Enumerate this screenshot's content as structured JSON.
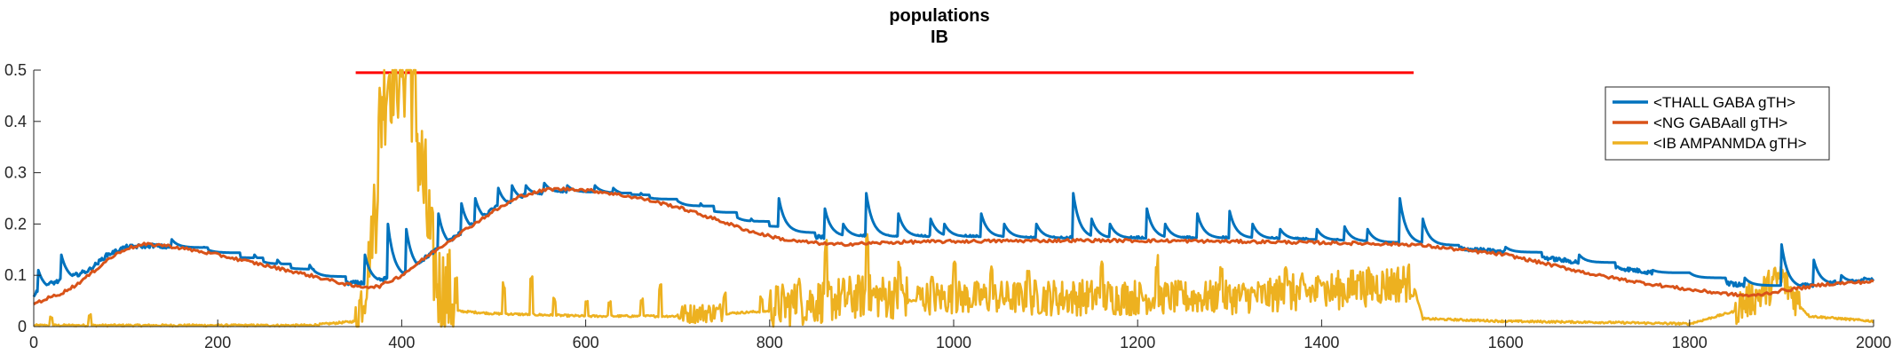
{
  "chart_data": {
    "type": "line",
    "title": "populations",
    "subtitle": "IB",
    "xlabel": "",
    "ylabel": "",
    "xlim": [
      0,
      2000
    ],
    "ylim": [
      0,
      0.5
    ],
    "xticks": [
      0,
      200,
      400,
      600,
      800,
      1000,
      1200,
      1400,
      1600,
      1800,
      2000
    ],
    "xtick_labels": [
      "0",
      "200",
      "400",
      "600",
      "800",
      "1000",
      "1200",
      "1400",
      "1600",
      "1800",
      "2000"
    ],
    "yticks": [
      0,
      0.1,
      0.2,
      0.3,
      0.4,
      0.5
    ],
    "ytick_labels": [
      "0",
      "0.1",
      "0.2",
      "0.3",
      "0.4",
      "0.5"
    ],
    "grid": false,
    "legend_position": "top-right",
    "stimulus_bar": {
      "x_start": 350,
      "x_end": 1500,
      "y": 0.495,
      "color": "#ff0000"
    },
    "series": [
      {
        "name": "<THALL GABA gTH>",
        "color": "#0072bd",
        "baseline_points": [
          [
            0,
            0.06
          ],
          [
            10,
            0.08
          ],
          [
            30,
            0.09
          ],
          [
            60,
            0.11
          ],
          [
            80,
            0.14
          ],
          [
            100,
            0.155
          ],
          [
            130,
            0.158
          ],
          [
            170,
            0.15
          ],
          [
            220,
            0.13
          ],
          [
            270,
            0.11
          ],
          [
            330,
            0.085
          ],
          [
            360,
            0.085
          ],
          [
            400,
            0.1
          ],
          [
            430,
            0.14
          ],
          [
            470,
            0.19
          ],
          [
            500,
            0.23
          ],
          [
            540,
            0.26
          ],
          [
            570,
            0.262
          ],
          [
            600,
            0.262
          ],
          [
            640,
            0.255
          ],
          [
            700,
            0.235
          ],
          [
            760,
            0.205
          ],
          [
            800,
            0.185
          ],
          [
            850,
            0.175
          ],
          [
            900,
            0.175
          ],
          [
            1000,
            0.175
          ],
          [
            1100,
            0.172
          ],
          [
            1200,
            0.172
          ],
          [
            1300,
            0.172
          ],
          [
            1400,
            0.168
          ],
          [
            1500,
            0.16
          ],
          [
            1600,
            0.145
          ],
          [
            1700,
            0.12
          ],
          [
            1800,
            0.095
          ],
          [
            1860,
            0.08
          ],
          [
            1900,
            0.075
          ],
          [
            1950,
            0.085
          ],
          [
            2000,
            0.09
          ]
        ],
        "spikes": [
          [
            5,
            0.11
          ],
          [
            30,
            0.14
          ],
          [
            75,
            0.11
          ],
          [
            150,
            0.17
          ],
          [
            185,
            0.155
          ],
          [
            210,
            0.14
          ],
          [
            240,
            0.14
          ],
          [
            265,
            0.13
          ],
          [
            300,
            0.12
          ],
          [
            360,
            0.14
          ],
          [
            385,
            0.2
          ],
          [
            405,
            0.19
          ],
          [
            440,
            0.22
          ],
          [
            465,
            0.24
          ],
          [
            480,
            0.25
          ],
          [
            505,
            0.27
          ],
          [
            520,
            0.275
          ],
          [
            535,
            0.275
          ],
          [
            555,
            0.28
          ],
          [
            580,
            0.275
          ],
          [
            610,
            0.275
          ],
          [
            630,
            0.27
          ],
          [
            660,
            0.26
          ],
          [
            700,
            0.245
          ],
          [
            725,
            0.24
          ],
          [
            760,
            0.22
          ],
          [
            780,
            0.21
          ],
          [
            810,
            0.25
          ],
          [
            860,
            0.23
          ],
          [
            880,
            0.2
          ],
          [
            905,
            0.26
          ],
          [
            940,
            0.22
          ],
          [
            975,
            0.21
          ],
          [
            990,
            0.2
          ],
          [
            1030,
            0.22
          ],
          [
            1055,
            0.2
          ],
          [
            1090,
            0.2
          ],
          [
            1130,
            0.26
          ],
          [
            1150,
            0.21
          ],
          [
            1170,
            0.2
          ],
          [
            1210,
            0.23
          ],
          [
            1230,
            0.2
          ],
          [
            1265,
            0.22
          ],
          [
            1300,
            0.225
          ],
          [
            1325,
            0.2
          ],
          [
            1355,
            0.19
          ],
          [
            1395,
            0.19
          ],
          [
            1425,
            0.195
          ],
          [
            1450,
            0.19
          ],
          [
            1485,
            0.25
          ],
          [
            1510,
            0.21
          ],
          [
            1600,
            0.155
          ],
          [
            1680,
            0.14
          ],
          [
            1760,
            0.11
          ],
          [
            1800,
            0.105
          ],
          [
            1860,
            0.095
          ],
          [
            1900,
            0.16
          ],
          [
            1935,
            0.13
          ],
          [
            1965,
            0.1
          ],
          [
            1990,
            0.095
          ]
        ]
      },
      {
        "name": "<NG GABAall gTH>",
        "color": "#d95319",
        "points": [
          [
            0,
            0.045
          ],
          [
            15,
            0.055
          ],
          [
            30,
            0.065
          ],
          [
            45,
            0.08
          ],
          [
            60,
            0.1
          ],
          [
            80,
            0.13
          ],
          [
            100,
            0.152
          ],
          [
            120,
            0.16
          ],
          [
            140,
            0.159
          ],
          [
            170,
            0.15
          ],
          [
            200,
            0.14
          ],
          [
            250,
            0.12
          ],
          [
            300,
            0.1
          ],
          [
            350,
            0.078
          ],
          [
            375,
            0.078
          ],
          [
            400,
            0.1
          ],
          [
            430,
            0.14
          ],
          [
            470,
            0.19
          ],
          [
            500,
            0.225
          ],
          [
            530,
            0.255
          ],
          [
            560,
            0.268
          ],
          [
            590,
            0.268
          ],
          [
            620,
            0.262
          ],
          [
            660,
            0.25
          ],
          [
            700,
            0.233
          ],
          [
            740,
            0.21
          ],
          [
            780,
            0.185
          ],
          [
            820,
            0.168
          ],
          [
            870,
            0.16
          ],
          [
            950,
            0.165
          ],
          [
            1050,
            0.167
          ],
          [
            1150,
            0.168
          ],
          [
            1250,
            0.167
          ],
          [
            1350,
            0.165
          ],
          [
            1450,
            0.162
          ],
          [
            1500,
            0.16
          ],
          [
            1550,
            0.15
          ],
          [
            1600,
            0.14
          ],
          [
            1650,
            0.12
          ],
          [
            1700,
            0.1
          ],
          [
            1750,
            0.085
          ],
          [
            1800,
            0.072
          ],
          [
            1850,
            0.062
          ],
          [
            1870,
            0.06
          ],
          [
            1900,
            0.07
          ],
          [
            1950,
            0.083
          ],
          [
            2000,
            0.088
          ]
        ]
      },
      {
        "name": "<IB AMPANMDA gTH>",
        "color": "#edb120",
        "baseline_points": [
          [
            0,
            0.002
          ],
          [
            300,
            0.002
          ],
          [
            350,
            0.01
          ],
          [
            360,
            0.06
          ],
          [
            370,
            0.2
          ],
          [
            380,
            0.45
          ],
          [
            390,
            0.5
          ],
          [
            400,
            0.5
          ],
          [
            410,
            0.48
          ],
          [
            420,
            0.3
          ],
          [
            430,
            0.15
          ],
          [
            440,
            0.06
          ],
          [
            460,
            0.03
          ],
          [
            500,
            0.025
          ],
          [
            600,
            0.02
          ],
          [
            700,
            0.02
          ],
          [
            800,
            0.03
          ],
          [
            850,
            0.04
          ],
          [
            900,
            0.05
          ],
          [
            1000,
            0.05
          ],
          [
            1100,
            0.05
          ],
          [
            1200,
            0.05
          ],
          [
            1300,
            0.05
          ],
          [
            1400,
            0.06
          ],
          [
            1450,
            0.07
          ],
          [
            1500,
            0.08
          ],
          [
            1510,
            0.015
          ],
          [
            1600,
            0.01
          ],
          [
            1700,
            0.008
          ],
          [
            1800,
            0.005
          ],
          [
            1850,
            0.03
          ],
          [
            1880,
            0.06
          ],
          [
            1900,
            0.09
          ],
          [
            1910,
            0.06
          ],
          [
            1930,
            0.02
          ],
          [
            2000,
            0.01
          ]
        ],
        "bursts": [
          [
            350,
            370,
            0.2
          ],
          [
            370,
            430,
            0.5
          ],
          [
            430,
            460,
            0.35
          ],
          [
            700,
            750,
            0.07
          ],
          [
            800,
            950,
            0.16
          ],
          [
            960,
            1080,
            0.12
          ],
          [
            1080,
            1200,
            0.13
          ],
          [
            1200,
            1350,
            0.12
          ],
          [
            1350,
            1500,
            0.14
          ],
          [
            1850,
            1920,
            0.13
          ]
        ],
        "spikes": [
          [
            18,
            0.02
          ],
          [
            60,
            0.025
          ],
          [
            510,
            0.09
          ],
          [
            540,
            0.1
          ],
          [
            565,
            0.06
          ],
          [
            600,
            0.05
          ],
          [
            625,
            0.05
          ],
          [
            660,
            0.055
          ],
          [
            680,
            0.085
          ],
          [
            750,
            0.07
          ],
          [
            790,
            0.06
          ],
          [
            830,
            0.1
          ],
          [
            860,
            0.17
          ],
          [
            905,
            0.2
          ],
          [
            940,
            0.13
          ],
          [
            975,
            0.1
          ],
          [
            1000,
            0.14
          ],
          [
            1040,
            0.12
          ],
          [
            1080,
            0.12
          ],
          [
            1160,
            0.13
          ],
          [
            1220,
            0.14
          ],
          [
            1290,
            0.12
          ],
          [
            1360,
            0.13
          ],
          [
            1400,
            0.1
          ],
          [
            1440,
            0.11
          ]
        ]
      }
    ]
  }
}
